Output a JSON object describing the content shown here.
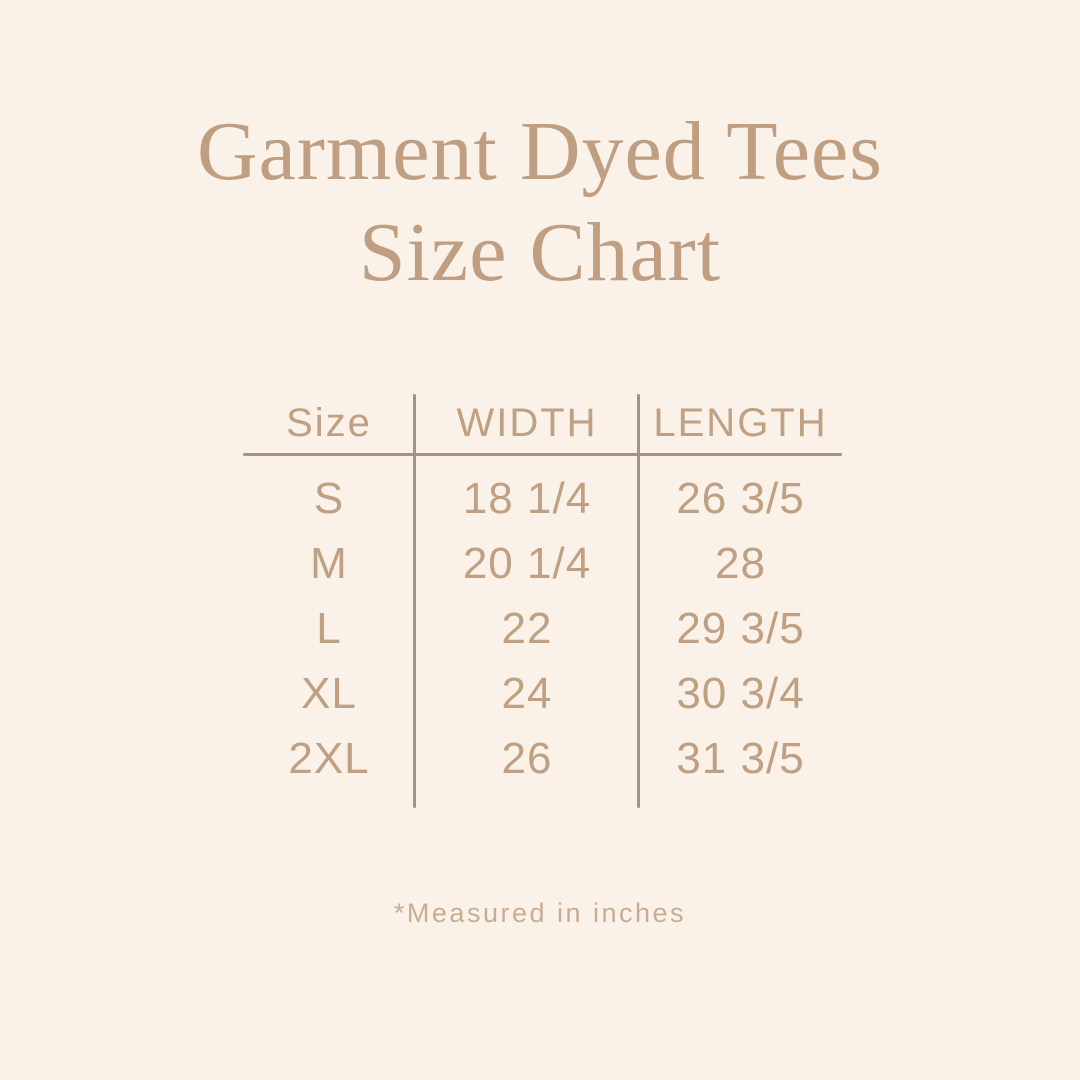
{
  "title": {
    "line1": "Garment Dyed Tees",
    "line2": "Size Chart"
  },
  "table": {
    "headers": [
      "Size",
      "WIDTH",
      "LENGTH"
    ],
    "rows": [
      {
        "size": "S",
        "width": "18 1/4",
        "length": "26 3/5"
      },
      {
        "size": "M",
        "width": "20 1/4",
        "length": "28"
      },
      {
        "size": "L",
        "width": "22",
        "length": "29 3/5"
      },
      {
        "size": "XL",
        "width": "24",
        "length": "30 3/4"
      },
      {
        "size": "2XL",
        "width": "26",
        "length": "31 3/5"
      }
    ]
  },
  "footnote": "*Measured in inches",
  "colors": {
    "background": "#FAF1E8",
    "title": "#C09E81",
    "table_text": "#BFA083",
    "line": "#A7917F",
    "footnote_text": "#C9AD93"
  }
}
